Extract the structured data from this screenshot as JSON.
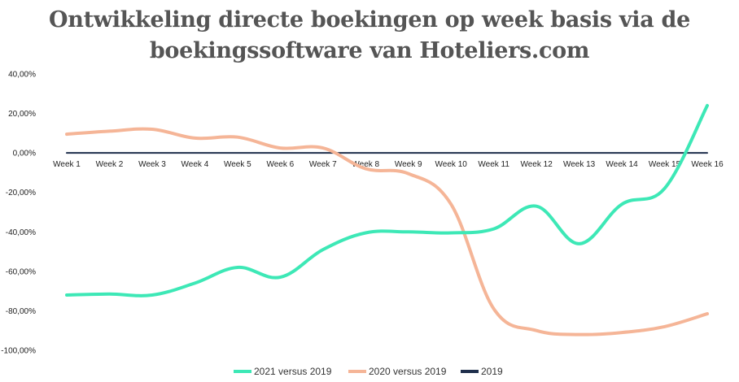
{
  "chart_data": {
    "type": "line",
    "title": "Ontwikkeling directe boekingen op week basis via de boekingssoftware van Hoteliers.com",
    "title_lines": [
      "Ontwikkeling directe boekingen op week basis via de",
      "boekingssoftware van Hoteliers.com"
    ],
    "xlabel": "",
    "ylabel": "",
    "categories": [
      "Week 1",
      "Week 2",
      "Week 3",
      "Week 4",
      "Week 5",
      "Week 6",
      "Week 7",
      "Week 8",
      "Week 9",
      "Week 10",
      "Week 11",
      "Week 12",
      "Week 13",
      "Week 14",
      "Week 15",
      "Week 16"
    ],
    "ylim": [
      -100,
      40
    ],
    "y_ticks": [
      40,
      20,
      0,
      -20,
      -40,
      -60,
      -80,
      -100
    ],
    "y_tick_labels": [
      "40,00%",
      "20,00%",
      "0,00%",
      "-20,00%",
      "-40,00%",
      "-60,00%",
      "-80,00%",
      "-100,00%"
    ],
    "grid": false,
    "legend_position": "bottom-center",
    "series": [
      {
        "name": "2021 versus 2019",
        "color": "#3de8b6",
        "values": [
          -72,
          -71.5,
          -72,
          -66,
          -58,
          -63,
          -49,
          -40.5,
          -40,
          -40.5,
          -38.5,
          -27,
          -46,
          -26,
          -18,
          24
        ]
      },
      {
        "name": "2020 versus 2019",
        "color": "#f5b597",
        "values": [
          9.5,
          11,
          12,
          7.5,
          8,
          2.5,
          2.5,
          -8,
          -10.5,
          -26,
          -79,
          -90,
          -92,
          -91,
          -88,
          -81.5
        ]
      },
      {
        "name": "2019",
        "color": "#1f2f4c",
        "values": [
          0,
          0,
          0,
          0,
          0,
          0,
          0,
          0,
          0,
          0,
          0,
          0,
          0,
          0,
          0,
          0
        ]
      }
    ]
  }
}
